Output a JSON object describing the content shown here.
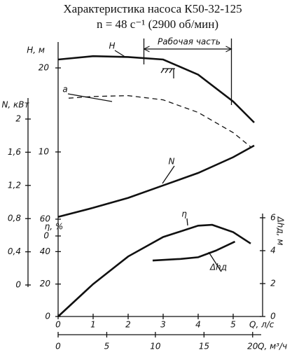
{
  "chart_data": {
    "type": "line",
    "title": "Характеристика насоса К50-32-125",
    "subtitle": "n = 48 с⁻¹ (2900 об/мин)",
    "annotation": "Рабочая часть",
    "work_range": [
      2.45,
      4.95
    ],
    "x_label": "Q, л/с",
    "xlim": [
      0,
      5.8
    ],
    "xticks": [
      0,
      1,
      2,
      3,
      4,
      5
    ],
    "x2_label": "Q, м³/ч",
    "x2lim": [
      0,
      20.88
    ],
    "x2ticks": [
      0,
      5,
      10,
      15,
      20
    ],
    "axes": {
      "H": {
        "label": "H, м",
        "lim": [
          0,
          22
        ],
        "ticks": [
          0,
          10,
          20
        ]
      },
      "N": {
        "label": "N, кВт",
        "lim": [
          0,
          2
        ],
        "ticks": [
          0,
          {
            "value": 0.4,
            "label": "0,4"
          },
          {
            "value": 0.8,
            "label": "0,8"
          },
          {
            "value": 1.2,
            "label": "1,2"
          },
          {
            "value": 1.6,
            "label": "1,6"
          },
          2
        ]
      },
      "eta": {
        "label": "η, %",
        "lim": [
          0,
          60
        ],
        "ticks": [
          0,
          20,
          40,
          60
        ]
      },
      "dh": {
        "label": "Δhд, м",
        "lim": [
          0,
          6
        ],
        "ticks": [
          0,
          2,
          4,
          6
        ]
      }
    },
    "series": [
      {
        "name": "H",
        "axis": "H",
        "color": "#111",
        "x": [
          0,
          1,
          2,
          3,
          4,
          5,
          5.6
        ],
        "values": [
          21.0,
          21.4,
          21.3,
          21.0,
          19.2,
          16.0,
          13.5
        ]
      },
      {
        "name": "a",
        "axis": "H",
        "color": "#111",
        "dashed": true,
        "x": [
          0.3,
          1,
          2,
          3,
          4,
          5,
          5.5
        ],
        "values": [
          16.4,
          16.6,
          16.7,
          16.2,
          14.7,
          12.3,
          10.6
        ]
      },
      {
        "name": "N",
        "axis": "N",
        "color": "#111",
        "x": [
          0,
          1,
          2,
          3,
          4,
          5,
          5.6
        ],
        "values": [
          0.82,
          0.93,
          1.05,
          1.2,
          1.35,
          1.54,
          1.68
        ]
      },
      {
        "name": "η",
        "axis": "eta",
        "color": "#111",
        "x": [
          0,
          1,
          2,
          3,
          4,
          4.4,
          5,
          5.5
        ],
        "values": [
          0,
          20,
          37,
          49,
          56,
          56.5,
          52,
          45
        ]
      },
      {
        "name": "Δhд",
        "axis": "dh",
        "color": "#111",
        "x": [
          2.7,
          3.5,
          4,
          4.5,
          5.05
        ],
        "values": [
          3.4,
          3.5,
          3.6,
          4.0,
          4.55
        ]
      }
    ]
  }
}
